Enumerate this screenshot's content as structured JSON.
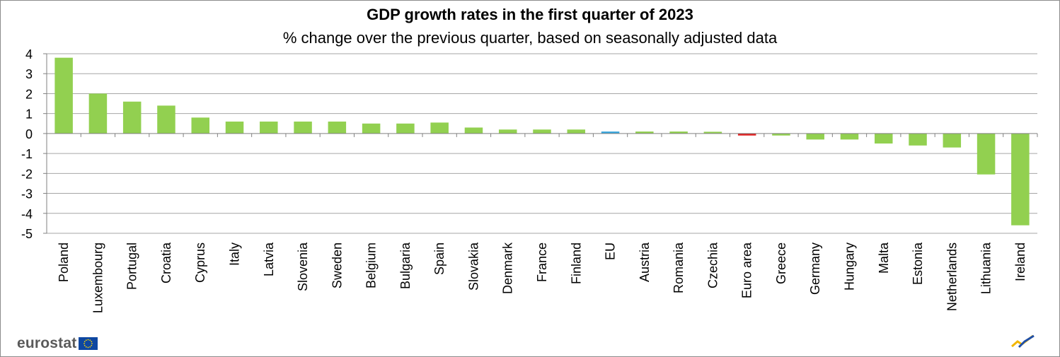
{
  "chart_data": {
    "type": "bar",
    "title": "GDP growth rates in the first quarter of  2023",
    "subtitle": "% change over the previous quarter, based on seasonally adjusted data",
    "xlabel": "",
    "ylabel": "",
    "ylim": [
      -5,
      4
    ],
    "yticks": [
      4,
      3,
      2,
      1,
      0,
      -1,
      -2,
      -3,
      -4,
      -5
    ],
    "grid": true,
    "categories": [
      "Poland",
      "Luxembourg",
      "Portugal",
      "Croatia",
      "Cyprus",
      "Italy",
      "Latvia",
      "Slovenia",
      "Sweden",
      "Belgium",
      "Bulgaria",
      "Spain",
      "Slovakia",
      "Denmark",
      "France",
      "Finland",
      "EU",
      "Austria",
      "Romania",
      "Czechia",
      "Euro area",
      "Greece",
      "Germany",
      "Hungary",
      "Malta",
      "Estonia",
      "Netherlands",
      "Lithuania",
      "Ireland"
    ],
    "values": [
      3.8,
      2.0,
      1.6,
      1.4,
      0.8,
      0.6,
      0.6,
      0.6,
      0.6,
      0.5,
      0.5,
      0.55,
      0.3,
      0.2,
      0.2,
      0.2,
      0.1,
      0.1,
      0.1,
      0.0,
      -0.1,
      -0.1,
      -0.3,
      -0.3,
      -0.5,
      -0.6,
      -0.7,
      -2.05,
      -4.6
    ],
    "colors": {
      "default": "#92d050",
      "EU": "#3aa6dd",
      "Euro area": "#e02020"
    }
  },
  "branding": {
    "logo_text": "eurostat",
    "flag_color": "#0e47a1",
    "star_color": "#ffd700"
  }
}
